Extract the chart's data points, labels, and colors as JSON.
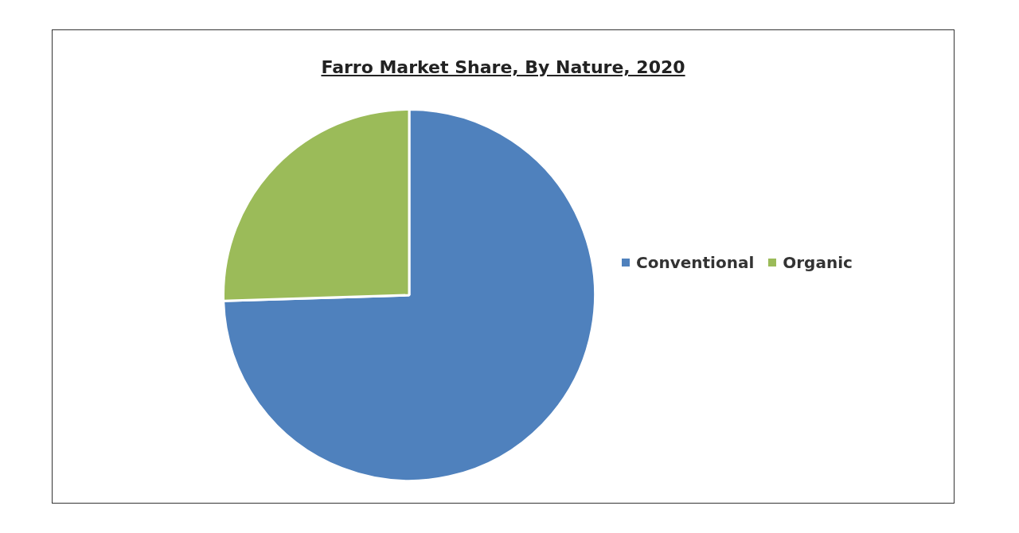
{
  "chart_data": {
    "type": "pie",
    "title": "Farro Market Share, By Nature, 2020",
    "categories": [
      "Conventional",
      "Organic"
    ],
    "values": [
      74.5,
      25.5
    ],
    "colors": [
      "#4f81bd",
      "#9bbb59"
    ],
    "legend": "right"
  }
}
